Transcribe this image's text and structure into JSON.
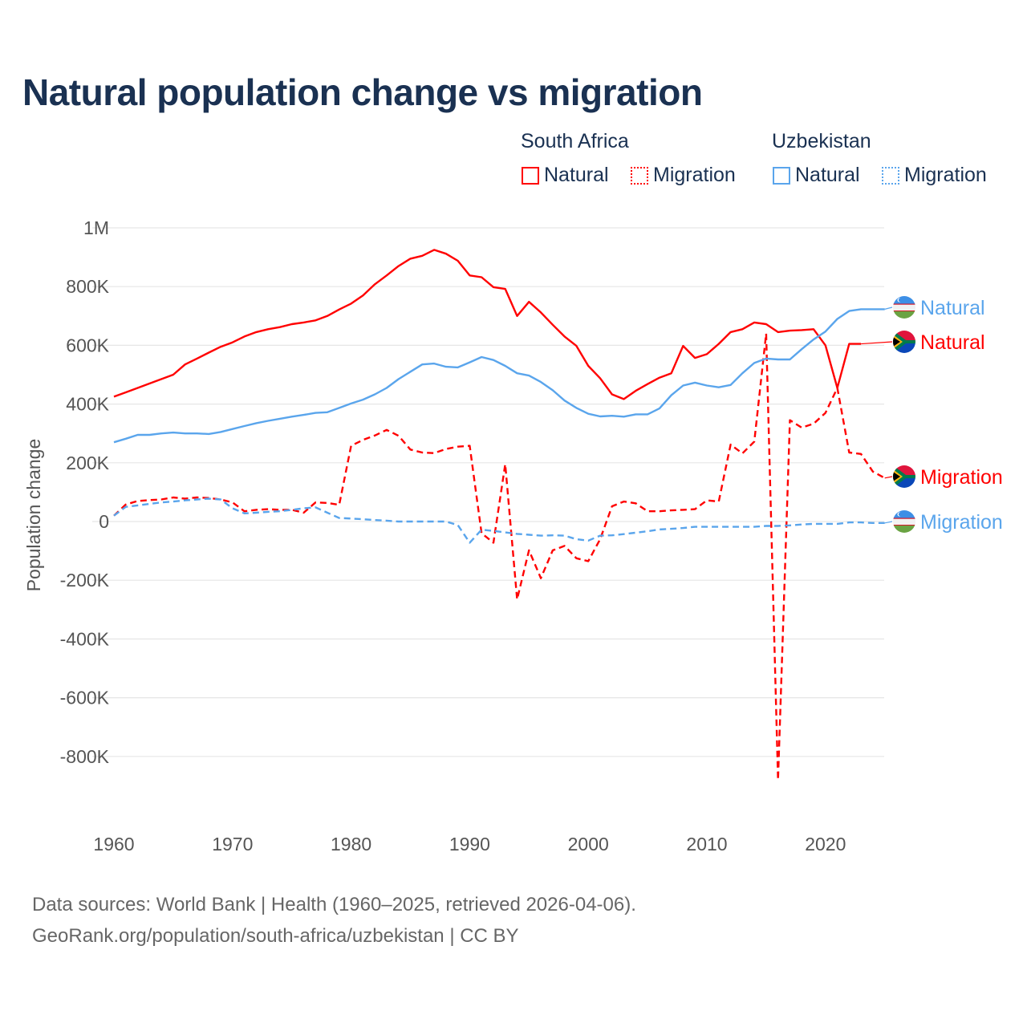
{
  "title": "Natural population change vs migration",
  "legend": {
    "groups": [
      {
        "name": "South Africa",
        "items": [
          "Natural",
          "Migration"
        ],
        "color": "#ff0000"
      },
      {
        "name": "Uzbekistan",
        "items": [
          "Natural",
          "Migration"
        ],
        "color": "#5aa5ec"
      }
    ]
  },
  "footer": {
    "line1": "Data sources: World Bank | Health (1960–2025, retrieved 2026-04-06).",
    "line2": "GeoRank.org/population/south-africa/uzbekistan | CC BY"
  },
  "chart_data": {
    "type": "line",
    "title": "Natural population change vs migration",
    "xlabel": "",
    "ylabel": "Population change",
    "xlim": [
      1960,
      2025
    ],
    "ylim": [
      -1000000,
      1000000
    ],
    "x_ticks": [
      1960,
      1970,
      1980,
      1990,
      2000,
      2010,
      2020
    ],
    "y_ticks": [
      {
        "value": 1000000,
        "label": "1M"
      },
      {
        "value": 800000,
        "label": "800K"
      },
      {
        "value": 600000,
        "label": "600K"
      },
      {
        "value": 400000,
        "label": "400K"
      },
      {
        "value": 200000,
        "label": "200K"
      },
      {
        "value": 0,
        "label": "0"
      },
      {
        "value": -200000,
        "label": "-200K"
      },
      {
        "value": -400000,
        "label": "-400K"
      },
      {
        "value": -600000,
        "label": "-600K"
      },
      {
        "value": -800000,
        "label": "-800K"
      }
    ],
    "grid": true,
    "legend_position": "top-right",
    "start_year": 1960,
    "series": [
      {
        "name": "South Africa Natural",
        "label": "Natural",
        "country": "South Africa",
        "color": "#ff0000",
        "dash": false,
        "values": [
          425000,
          440000,
          455000,
          470000,
          485000,
          500000,
          535000,
          555000,
          575000,
          595000,
          610000,
          630000,
          645000,
          655000,
          662000,
          672000,
          678000,
          685000,
          700000,
          722000,
          742000,
          770000,
          808000,
          838000,
          870000,
          895000,
          905000,
          925000,
          912000,
          888000,
          838000,
          832000,
          798000,
          792000,
          700000,
          748000,
          712000,
          670000,
          630000,
          598000,
          530000,
          488000,
          433000,
          417000,
          445000,
          468000,
          490000,
          505000,
          598000,
          557000,
          570000,
          605000,
          645000,
          655000,
          678000,
          672000,
          645000,
          650000,
          652000,
          655000,
          600000,
          455000,
          605000,
          605000
        ]
      },
      {
        "name": "South Africa Migration",
        "label": "Migration",
        "country": "South Africa",
        "color": "#ff0000",
        "dash": true,
        "values": [
          20000,
          58000,
          70000,
          73000,
          75000,
          82000,
          78000,
          82000,
          80000,
          75000,
          65000,
          35000,
          40000,
          42000,
          40000,
          40000,
          30000,
          65000,
          63000,
          57000,
          258000,
          278000,
          293000,
          312000,
          292000,
          245000,
          235000,
          233000,
          247000,
          255000,
          258000,
          -40000,
          -72000,
          195000,
          -265000,
          -98000,
          -193000,
          -98000,
          -83000,
          -125000,
          -135000,
          -60000,
          52000,
          68000,
          62000,
          35000,
          35000,
          38000,
          40000,
          42000,
          72000,
          68000,
          262000,
          232000,
          272000,
          640000,
          -880000,
          345000,
          320000,
          333000,
          370000,
          455000,
          235000,
          230000,
          170000,
          148000
        ]
      },
      {
        "name": "Uzbekistan Natural",
        "label": "Natural",
        "country": "Uzbekistan",
        "color": "#5aa5ec",
        "dash": false,
        "values": [
          270000,
          282000,
          295000,
          295000,
          300000,
          303000,
          300000,
          300000,
          298000,
          305000,
          315000,
          325000,
          335000,
          343000,
          350000,
          357000,
          363000,
          370000,
          372000,
          387000,
          402000,
          415000,
          433000,
          455000,
          485000,
          510000,
          535000,
          538000,
          527000,
          525000,
          542000,
          560000,
          550000,
          530000,
          505000,
          497000,
          475000,
          447000,
          412000,
          387000,
          367000,
          358000,
          360000,
          357000,
          365000,
          365000,
          385000,
          430000,
          463000,
          473000,
          463000,
          457000,
          465000,
          505000,
          540000,
          555000,
          552000,
          552000,
          587000,
          620000,
          647000,
          690000,
          717000,
          723000,
          723000,
          723000
        ]
      },
      {
        "name": "Uzbekistan Migration",
        "label": "Migration",
        "country": "Uzbekistan",
        "color": "#5aa5ec",
        "dash": true,
        "values": [
          20000,
          50000,
          55000,
          60000,
          65000,
          68000,
          72000,
          75000,
          78000,
          75000,
          45000,
          28000,
          30000,
          33000,
          35000,
          40000,
          45000,
          48000,
          30000,
          12000,
          10000,
          8000,
          5000,
          3000,
          0,
          0,
          0,
          0,
          0,
          -12000,
          -72000,
          -28000,
          -32000,
          -37000,
          -42000,
          -45000,
          -48000,
          -47000,
          -48000,
          -60000,
          -65000,
          -48000,
          -47000,
          -43000,
          -38000,
          -33000,
          -27000,
          -25000,
          -22000,
          -18000,
          -18000,
          -18000,
          -18000,
          -18000,
          -18000,
          -15000,
          -15000,
          -13000,
          -10000,
          -8000,
          -8000,
          -8000,
          -3000,
          -3000,
          -5000,
          -5000
        ]
      }
    ]
  }
}
